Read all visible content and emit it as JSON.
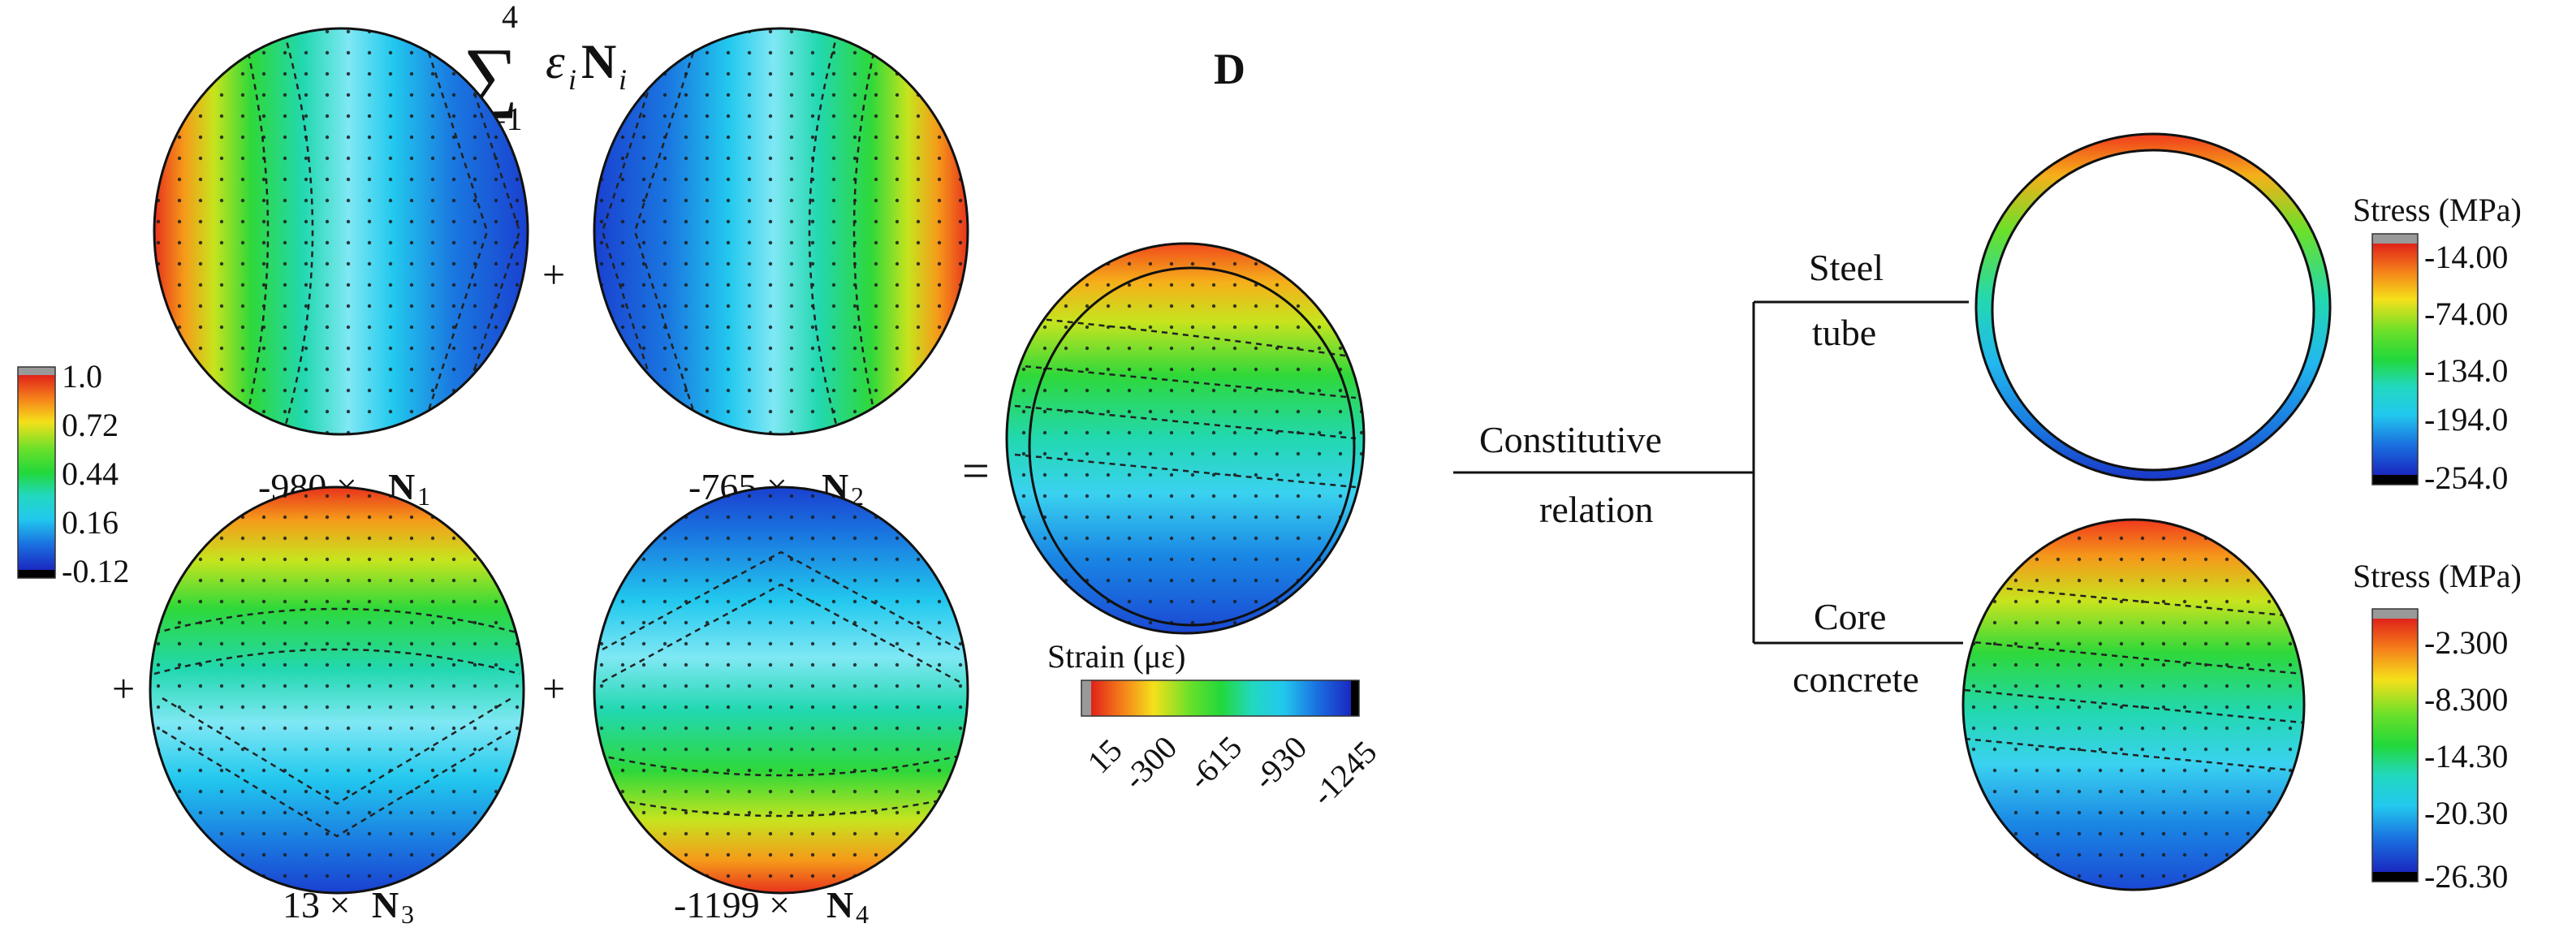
{
  "diagram": {
    "sum_symbol": "∑",
    "sum_upper": "4",
    "sum_lower": "i=1",
    "sum_term": "ε",
    "sum_term_sub": "i",
    "sum_N": "N",
    "sum_N_sub": "i",
    "panel_label": "D",
    "plus": "+",
    "equals": "=",
    "shape_functions": [
      {
        "coef": "-980 ×",
        "N": "N",
        "sub": "1"
      },
      {
        "coef": "-765 ×",
        "N": "N",
        "sub": "2"
      },
      {
        "coef": "13 ×",
        "N": "N",
        "sub": "3"
      },
      {
        "coef": "-1199 ×",
        "N": "N",
        "sub": "4"
      }
    ],
    "shape_colorbar": {
      "ticks": [
        "1.0",
        "0.72",
        "0.44",
        "0.16",
        "-0.12"
      ]
    },
    "strain": {
      "title": "Strain (με)",
      "ticks": [
        "15",
        "-300",
        "-615",
        "-930",
        "-1245"
      ]
    },
    "branch": {
      "constitutive_line1": "Constitutive",
      "constitutive_line2": "relation",
      "steel_line1": "Steel",
      "steel_line2": "tube",
      "core_line1": "Core",
      "core_line2": "concrete"
    },
    "steel_stress": {
      "title": "Stress (MPa)",
      "ticks": [
        "-14.00",
        "-74.00",
        "-134.0",
        "-194.0",
        "-254.0"
      ]
    },
    "concrete_stress": {
      "title": "Stress (MPa)",
      "ticks": [
        "-2.300",
        "-8.300",
        "-14.30",
        "-20.30",
        "-26.30"
      ]
    }
  }
}
